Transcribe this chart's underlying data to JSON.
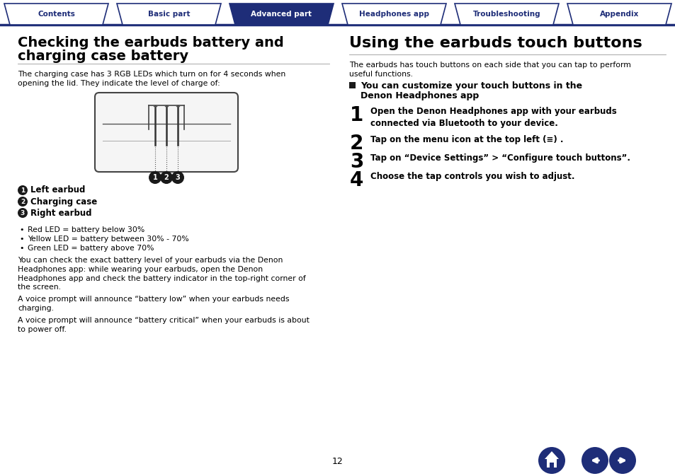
{
  "bg_color": "#ffffff",
  "nav_color_active": "#1e2d78",
  "nav_color_inactive": "#ffffff",
  "nav_stroke": "#1e2d78",
  "nav_tabs": [
    "Contents",
    "Basic part",
    "Advanced part",
    "Headphones app",
    "Troubleshooting",
    "Appendix"
  ],
  "nav_active_index": 2,
  "left_title_line1": "Checking the earbuds battery and",
  "left_title_line2": "charging case battery",
  "left_intro": "The charging case has 3 RGB LEDs which turn on for 4 seconds when\nopening the lid. They indicate the level of charge of:",
  "left_labels": [
    {
      "num": "1",
      "text": "Left earbud"
    },
    {
      "num": "2",
      "text": "Charging case"
    },
    {
      "num": "3",
      "text": "Right earbud"
    }
  ],
  "left_bullets": [
    "Red LED = battery below 30%",
    "Yellow LED = battery between 30% - 70%",
    "Green LED = battery above 70%"
  ],
  "left_para1": "You can check the exact battery level of your earbuds via the Denon\nHeadphones app: while wearing your earbuds, open the Denon\nHeadphones app and check the battery indicator in the top-right corner of\nthe screen.",
  "left_para2": "A voice prompt will announce “battery low” when your earbuds needs\ncharging.",
  "left_para3": "A voice prompt will announce “battery critical” when your earbuds is about\nto power off.",
  "right_title": "Using the earbuds touch buttons",
  "right_intro": "The earbuds has touch buttons on each side that you can tap to perform\nuseful functions.",
  "right_box_text_line1": "You can customize your touch buttons in the",
  "right_box_text_line2": "Denon Headphones app",
  "right_steps": [
    {
      "num": "1",
      "text": "Open the Denon Headphones app with your earbuds\nconnected via Bluetooth to your device."
    },
    {
      "num": "2",
      "text": "Tap on the menu icon at the top left (≡) ."
    },
    {
      "num": "3",
      "text": "Tap on “Device Settings” > “Configure touch buttons”."
    },
    {
      "num": "4",
      "text": "Choose the tap controls you wish to adjust."
    }
  ],
  "page_number": "12",
  "accent_color": "#1e2d78",
  "text_color": "#000000"
}
